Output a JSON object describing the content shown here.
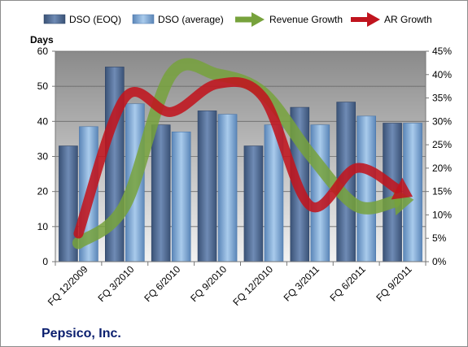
{
  "company": "Pepsico, Inc.",
  "chart_data": {
    "type": "bar",
    "ylabel": "Days",
    "ylim": [
      0,
      60
    ],
    "y_ticks": [
      "0",
      "10",
      "20",
      "30",
      "40",
      "50",
      "60"
    ],
    "y2lim": [
      0,
      45
    ],
    "y2_ticks": [
      "0%",
      "5%",
      "10%",
      "15%",
      "20%",
      "25%",
      "30%",
      "35%",
      "40%",
      "45%"
    ],
    "categories": [
      "FQ 12/2009",
      "FQ 3/2010",
      "FQ 6/2010",
      "FQ 9/2010",
      "FQ 12/2010",
      "FQ 3/2011",
      "FQ 6/2011",
      "FQ 9/2011"
    ],
    "series": [
      {
        "name": "DSO (EOQ)",
        "type": "bar",
        "axis": "left",
        "values": [
          33,
          55.5,
          39,
          43,
          33,
          44,
          45.5,
          39.5
        ]
      },
      {
        "name": "DSO (average)",
        "type": "bar",
        "axis": "left",
        "values": [
          38.5,
          45,
          37,
          42,
          39,
          39,
          41.5,
          39.5
        ]
      },
      {
        "name": "Revenue Growth",
        "type": "line",
        "axis": "right",
        "values": [
          4,
          12,
          40,
          40,
          36,
          23,
          12,
          13
        ]
      },
      {
        "name": "AR Growth",
        "type": "line",
        "axis": "right",
        "values": [
          6,
          35,
          32,
          38,
          35,
          12,
          20,
          15
        ]
      }
    ],
    "legend_position": "top",
    "grid": true,
    "colors": {
      "dso_eoq": "#4f6a94",
      "dso_avg": "#7aa6d6",
      "revenue_growth": "#77a23c",
      "ar_growth": "#c0141e",
      "plot_bg_top": "#8a8a8a",
      "plot_bg_bottom": "#f2f2f2"
    }
  }
}
